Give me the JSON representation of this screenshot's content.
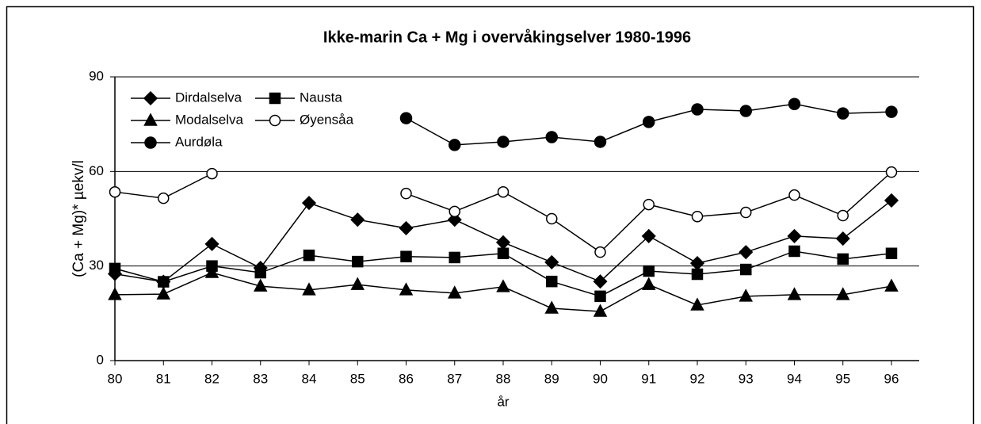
{
  "chart_data": {
    "type": "line",
    "title": "Ikke-marin Ca + Mg i overvåkingselver 1980-1996",
    "x_label": "år",
    "y_label": "(Ca + Mg)* µekv/l",
    "categories": [
      "80",
      "81",
      "82",
      "83",
      "84",
      "85",
      "86",
      "87",
      "88",
      "89",
      "90",
      "91",
      "92",
      "93",
      "94",
      "95",
      "96"
    ],
    "ylim": [
      0,
      90
    ],
    "yticks": [
      0,
      30,
      60,
      90
    ],
    "grid": true,
    "legend": "upper left",
    "series": [
      {
        "name": "Dirdalselva",
        "color": "#000000",
        "marker": "diamond",
        "values": [
          27.5,
          25,
          37,
          29.4,
          50,
          44.7,
          42,
          44.7,
          37.5,
          31.2,
          25.1,
          39.5,
          30.9,
          34.4,
          39.5,
          38.7,
          50.8
        ]
      },
      {
        "name": "Nausta",
        "color": "#000000",
        "marker": "square",
        "values": [
          29.2,
          25,
          30,
          27.9,
          33.4,
          31.4,
          33,
          32.7,
          34,
          25.1,
          20.4,
          28.4,
          27.4,
          28.9,
          34.7,
          32.2,
          34
        ]
      },
      {
        "name": "Modalselva",
        "color": "#000000",
        "marker": "triangle",
        "values": [
          20.9,
          21.1,
          27.9,
          23.6,
          22.4,
          24.1,
          22.4,
          21.4,
          23.4,
          16.6,
          15.6,
          24.1,
          17.6,
          20.4,
          20.9,
          20.9,
          23.6
        ]
      },
      {
        "name": "Øyensåa",
        "color": "#000000",
        "marker": "open-circle",
        "values": [
          53.5,
          51.5,
          59.3,
          null,
          null,
          null,
          53,
          47.3,
          53.5,
          45,
          34.4,
          49.5,
          45.7,
          47,
          52.5,
          46,
          59.8
        ]
      },
      {
        "name": "Aurdøla",
        "color": "#000000",
        "marker": "circle",
        "values": [
          null,
          null,
          null,
          null,
          null,
          null,
          76.9,
          68.4,
          69.4,
          70.9,
          69.4,
          75.7,
          79.7,
          79.2,
          81.4,
          78.4,
          78.9
        ]
      }
    ]
  }
}
